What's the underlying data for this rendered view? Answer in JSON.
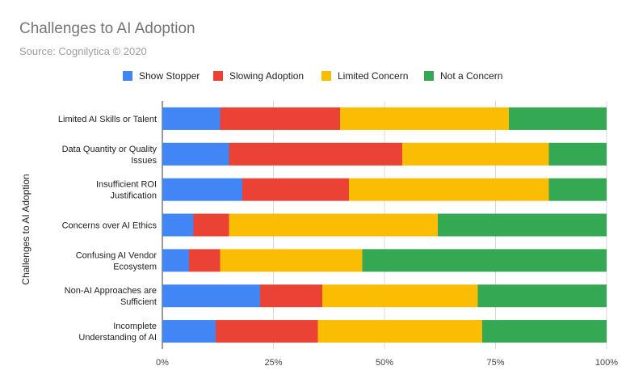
{
  "chart_data": {
    "type": "bar",
    "orientation": "horizontal",
    "stacked": "percent",
    "title": "Challenges to AI Adoption",
    "subtitle": "Source: Cognilytica © 2020",
    "ylabel": "Challenges to AI Adoption",
    "xlabel": "",
    "xlim": [
      0,
      100
    ],
    "xticks": [
      "0%",
      "25%",
      "50%",
      "75%",
      "100%"
    ],
    "legend_position": "top",
    "categories": [
      [
        "Limited AI Skills or Talent"
      ],
      [
        "Data Quantity or Quality",
        "Issues"
      ],
      [
        "Insufficient ROI",
        "Justification"
      ],
      [
        "Concerns over AI Ethics"
      ],
      [
        "Confusing AI Vendor",
        "Ecosystem"
      ],
      [
        "Non-AI Approaches are",
        "Sufficient"
      ],
      [
        "Incomplete",
        "Understanding of AI"
      ]
    ],
    "series": [
      {
        "name": "Show Stopper",
        "color": "#4285f4",
        "values": [
          13,
          15,
          18,
          7,
          6,
          22,
          12
        ]
      },
      {
        "name": "Slowing Adoption",
        "color": "#ea4335",
        "values": [
          27,
          39,
          24,
          8,
          7,
          14,
          23
        ]
      },
      {
        "name": "Limited Concern",
        "color": "#fbbc04",
        "values": [
          38,
          33,
          45,
          47,
          32,
          35,
          37
        ]
      },
      {
        "name": "Not a Concern",
        "color": "#34a853",
        "values": [
          22,
          13,
          13,
          38,
          55,
          29,
          28
        ]
      }
    ]
  }
}
